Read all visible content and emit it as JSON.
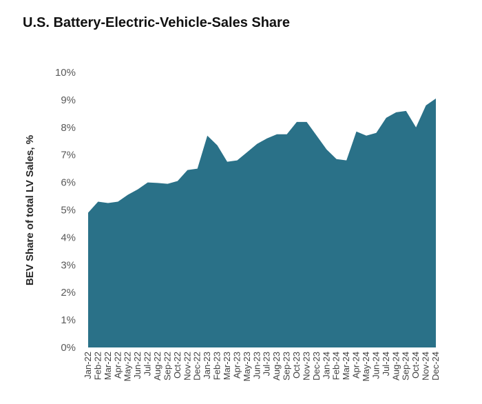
{
  "chart_data": {
    "type": "area",
    "title": "U.S. Battery-Electric-Vehicle-Sales Share",
    "xlabel": "",
    "ylabel": "BEV Share of total LV Sales, %",
    "ylim": [
      0,
      10
    ],
    "ytick_labels": [
      "0%",
      "1%",
      "2%",
      "3%",
      "4%",
      "5%",
      "6%",
      "7%",
      "8%",
      "9%",
      "10%"
    ],
    "grid": false,
    "legend": "none",
    "fill_color": "#2a7188",
    "categories": [
      "Jan-22",
      "Feb-22",
      "Mar-22",
      "Apr-22",
      "May-22",
      "Jun-22",
      "Jul-22",
      "Aug-22",
      "Sep-22",
      "Oct-22",
      "Nov-22",
      "Dec-22",
      "Jan-23",
      "Feb-23",
      "Mar-23",
      "Apr-23",
      "May-23",
      "Jun-23",
      "Jul-23",
      "Aug-23",
      "Sep-23",
      "Oct-23",
      "Nov-23",
      "Dec-23",
      "Jan-24",
      "Feb-24",
      "Mar-24",
      "Apr-24",
      "May-24",
      "Jun-24",
      "Jul-24",
      "Aug-24",
      "Sep-24",
      "Oct-24",
      "Nov-24",
      "Dec-24"
    ],
    "series": [
      {
        "name": "BEV Share of total LV Sales",
        "values": [
          4.9,
          5.3,
          5.25,
          5.3,
          5.55,
          5.75,
          6.0,
          5.98,
          5.95,
          6.05,
          6.45,
          6.5,
          7.7,
          7.35,
          6.75,
          6.8,
          7.1,
          7.4,
          7.6,
          7.75,
          7.75,
          8.2,
          8.2,
          7.7,
          7.2,
          6.85,
          6.8,
          7.85,
          7.7,
          7.8,
          8.35,
          8.55,
          8.6,
          8.0,
          8.8,
          9.05
        ]
      }
    ]
  }
}
